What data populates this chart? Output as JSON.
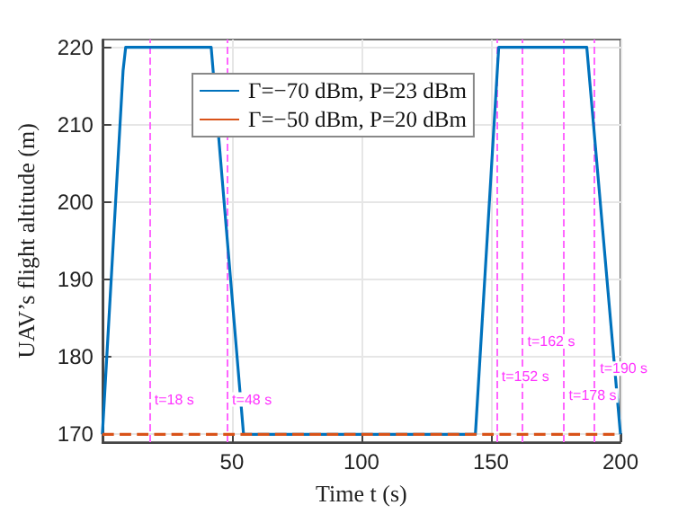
{
  "chart_data": {
    "type": "line",
    "xlabel": "Time t (s)",
    "ylabel": "UAV’s flight altitude (m)",
    "xlim": [
      0,
      200
    ],
    "xticks": [
      50,
      100,
      150,
      200
    ],
    "ylim": [
      169,
      221
    ],
    "yticks": [
      170,
      180,
      190,
      200,
      210,
      220
    ],
    "grid": true,
    "legend": "top",
    "marker": "none",
    "series": [
      {
        "name": "Γ=−70 dBm, P=23 dBm",
        "color": "#0072bd",
        "line_style": "solid",
        "x": [
          0,
          8,
          9,
          42,
          54.5,
          144,
          153,
          187,
          200
        ],
        "values": [
          170,
          217,
          220,
          220,
          170,
          170,
          220,
          220,
          170
        ]
      },
      {
        "name": "Γ=−50 dBm, P=20 dBm",
        "color": "#d95319",
        "line_style": "dashed",
        "x": [
          0,
          200
        ],
        "values": [
          170,
          170
        ]
      }
    ],
    "ref_lines": [
      {
        "axis": "x",
        "value": 18,
        "color": "#ff66ff",
        "line_style": "dashed"
      },
      {
        "axis": "x",
        "value": 48,
        "color": "#ff66ff",
        "line_style": "dashed"
      },
      {
        "axis": "x",
        "value": 152,
        "color": "#ff66ff",
        "line_style": "dashed"
      },
      {
        "axis": "x",
        "value": 162,
        "color": "#ff66ff",
        "line_style": "dashed"
      },
      {
        "axis": "x",
        "value": 178,
        "color": "#ff66ff",
        "line_style": "dashed"
      },
      {
        "axis": "x",
        "value": 190,
        "color": "#ff66ff",
        "line_style": "dashed"
      }
    ],
    "annotations": [
      {
        "text": "t=18 s",
        "x": 18,
        "y": 174.5
      },
      {
        "text": "t=48 s",
        "x": 48,
        "y": 174.5
      },
      {
        "text": "t=152 s",
        "x": 152,
        "y": 177.5
      },
      {
        "text": "t=162 s",
        "x": 162,
        "y": 182
      },
      {
        "text": "t=178 s",
        "x": 178,
        "y": 175
      },
      {
        "text": "t=190 s",
        "x": 190,
        "y": 178.5
      }
    ]
  }
}
